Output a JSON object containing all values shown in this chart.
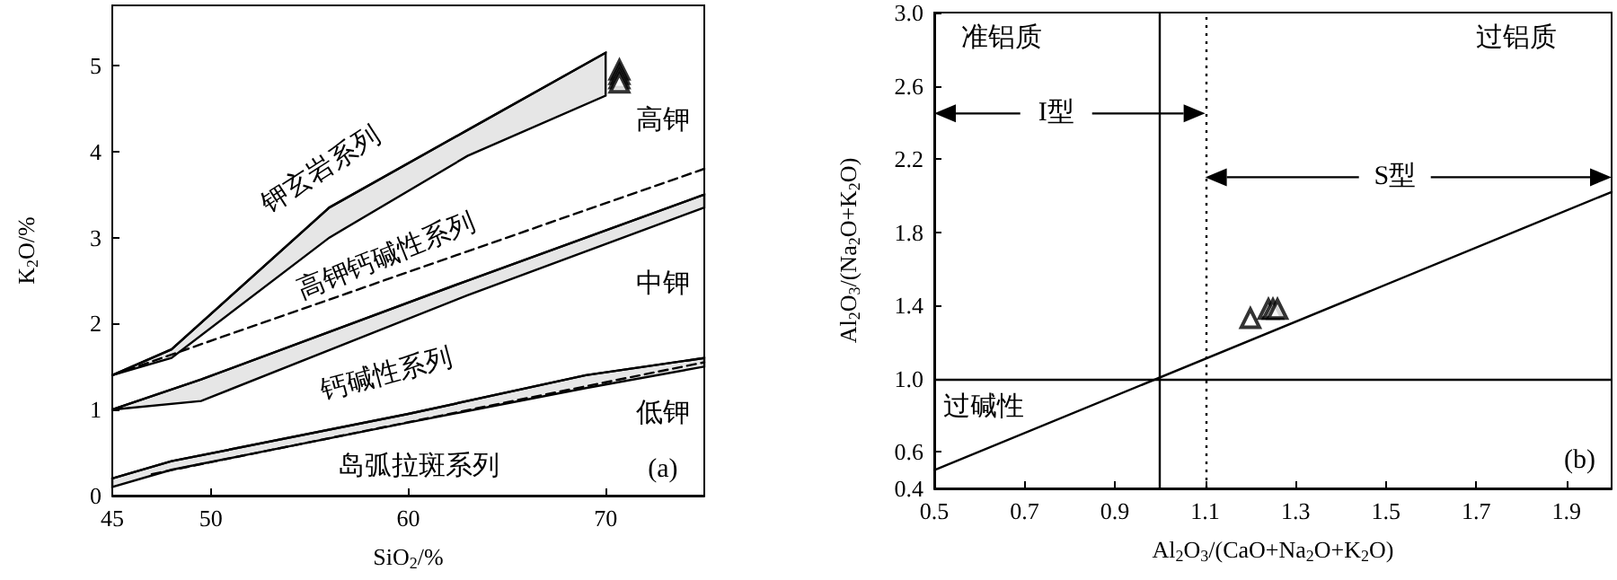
{
  "chart_data": [
    {
      "type": "line",
      "xlabel": "SiO$_{2}$/%",
      "ylabel": "K$_{2}$O/%",
      "xlim": [
        45,
        75
      ],
      "ylim": [
        0,
        5.7
      ],
      "xticks": [
        45,
        50,
        60,
        70
      ],
      "yticks": [
        0,
        1,
        2,
        3,
        4,
        5
      ],
      "series": [
        {
          "color": "#000000",
          "x": [
            45,
            48,
            56,
            63,
            70
          ],
          "values": [
            1.4,
            1.7,
            3.35,
            4.25,
            5.15
          ],
          "lower": [
            1.4,
            1.6,
            3.0,
            3.95,
            4.65
          ],
          "upper": [
            1.4,
            1.7,
            3.35,
            4.25,
            5.15
          ]
        },
        {
          "color": "#000000",
          "x": [
            45,
            49.5,
            63,
            75
          ],
          "values": [
            1.0,
            1.35,
            2.5,
            3.5
          ],
          "lower": [
            1.0,
            1.1,
            2.33,
            3.35
          ],
          "upper": [
            1.0,
            1.35,
            2.5,
            3.5
          ]
        },
        {
          "color": "#000000",
          "x": [
            45,
            48,
            60,
            69,
            75
          ],
          "values": [
            0.2,
            0.4,
            0.95,
            1.4,
            1.6
          ],
          "lower": [
            0.1,
            0.3,
            0.85,
            1.25,
            1.5
          ],
          "upper": [
            0.2,
            0.4,
            0.95,
            1.4,
            1.6
          ]
        },
        {
          "color": "#000000",
          "x": [
            45,
            75
          ],
          "values": [
            1.4,
            3.8
          ],
          "line_style": "dashed"
        },
        {
          "color": "#000000",
          "x": [
            47,
            75
          ],
          "values": [
            0.25,
            1.55
          ],
          "line_style": "dashed"
        },
        {
          "type": "scatter",
          "color": "#000000",
          "marker": "triangle",
          "x": [
            70.7,
            70.7,
            70.7,
            70.7
          ],
          "values": [
            4.95,
            4.9,
            4.85,
            4.8
          ]
        }
      ],
      "annotations": [
        "钾玄岩系列",
        "高钾钙碱性系列",
        "钙碱性系列",
        "岛弧拉斑系列",
        "高钾",
        "中钾",
        "低钾",
        "(a)"
      ]
    },
    {
      "type": "scatter",
      "xlabel": "Al$_{2}$O$_{3}$/(CaO+Na$_{2}$O+K$_{2}$O)",
      "ylabel": "Al$_{2}$O$_{3}$/(Na$_{2}$O+K$_{2}$O)",
      "xlim": [
        0.5,
        2.0
      ],
      "ylim": [
        0.4,
        3.0
      ],
      "xticks": [
        0.5,
        0.7,
        0.9,
        1.1,
        1.3,
        1.5,
        1.7,
        1.9
      ],
      "yticks": [
        0.4,
        0.6,
        {
          "value": 1.0,
          "label": "1.0"
        },
        1.4,
        1.8,
        2.2,
        2.6,
        {
          "value": 3.0,
          "label": "3.0"
        }
      ],
      "series": [
        {
          "type": "line",
          "color": "#000000",
          "x": [
            0.5,
            2.0
          ],
          "values": [
            0.5,
            2.02
          ]
        },
        {
          "color": "#000000",
          "marker": "triangle",
          "x": [
            1.2,
            1.24,
            1.25,
            1.26
          ],
          "values": [
            1.33,
            1.38,
            1.38,
            1.38
          ]
        }
      ],
      "ref_lines": [
        {
          "axis": "x",
          "value": 1.0
        },
        {
          "axis": "x",
          "value": 1.1,
          "line_style": "dotted"
        },
        {
          "axis": "y",
          "value": 1.0
        }
      ],
      "annotations": [
        "准铝质",
        "过铝质",
        "过碱性",
        "(b)",
        "I型",
        "S型"
      ]
    }
  ]
}
